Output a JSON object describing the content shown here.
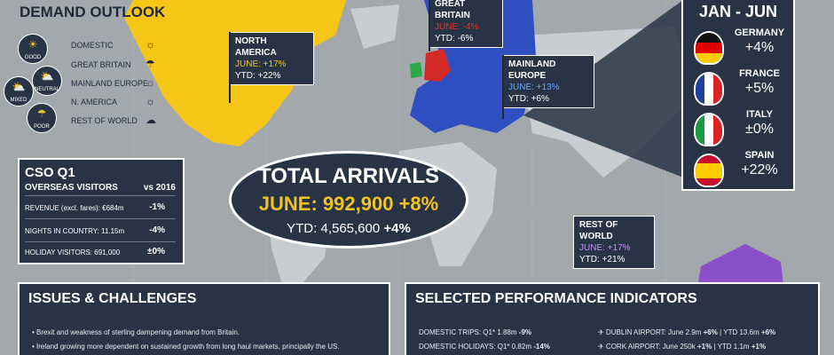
{
  "demand": {
    "title": "DEMAND OUTLOOK",
    "levels": [
      {
        "label": "GOOD",
        "icon": "sun-icon"
      },
      {
        "label": "NEUTRAL",
        "icon": "sun-cloud-icon"
      },
      {
        "label": "MIXED",
        "icon": "cloud-sun-icon"
      },
      {
        "label": "POOR",
        "icon": "rain-icon"
      }
    ],
    "markets": [
      {
        "name": "DOMESTIC",
        "outlook": "sun-icon"
      },
      {
        "name": "GREAT BRITAIN",
        "outlook": "rain-icon"
      },
      {
        "name": "MAINLAND EUROPE",
        "outlook": "sun-icon"
      },
      {
        "name": "N. AMERICA",
        "outlook": "sun-icon"
      },
      {
        "name": "REST OF WORLD",
        "outlook": "cloud-icon"
      }
    ]
  },
  "regions": {
    "north_america": {
      "name": "NORTH AMERICA",
      "june": "JUNE: +17%",
      "ytd_label": "YTD:",
      "ytd": "+22%"
    },
    "great_britain": {
      "name": "GREAT BRITAIN",
      "june": "JUNE: -4%",
      "ytd_label": "YTD:",
      "ytd": "-6%"
    },
    "mainland_europe": {
      "name": "MAINLAND EUROPE",
      "june": "JUNE: +13%",
      "ytd_label": "YTD:",
      "ytd": "+6%"
    },
    "rest_of_world": {
      "name": "REST OF WORLD",
      "june": "JUNE: +17%",
      "ytd_label": "YTD:",
      "ytd": "+21%"
    }
  },
  "cso": {
    "title": "CSO Q1",
    "sub": "OVERSEAS VISITORS",
    "vs": "vs 2016",
    "rows": [
      {
        "label": "REVENUE (excl. fares): €684m",
        "value": "-1%"
      },
      {
        "label": "NIGHTS IN COUNTRY: 11.15m",
        "value": "-4%"
      },
      {
        "label": "HOLIDAY VISITORS: 691,000",
        "value": "±0%"
      }
    ]
  },
  "total": {
    "title": "TOTAL ARRIVALS",
    "june": "JUNE: 992,900 +8%",
    "ytd_label": "YTD: 4,565,600",
    "ytd_change": "+4%"
  },
  "janjun": {
    "title": "JAN - JUN",
    "countries": [
      {
        "name": "GERMANY",
        "value": "+4%"
      },
      {
        "name": "FRANCE",
        "value": "+5%"
      },
      {
        "name": "ITALY",
        "value": "±0%"
      },
      {
        "name": "SPAIN",
        "value": "+22%"
      }
    ]
  },
  "issues": {
    "title": "ISSUES & CHALLENGES",
    "items": [
      "Brexit and weakness of sterling dampening demand from Britain.",
      "Ireland growing more dependent on sustained growth from long haul markets, principally the US."
    ]
  },
  "spi": {
    "title": "SELECTED PERFORMANCE INDICATORS",
    "left": [
      {
        "label": "DOMESTIC TRIPS: Q1* 1.88m",
        "value": "-9%"
      },
      {
        "label": "DOMESTIC HOLIDAYS: Q1* 0.82m",
        "value": "-14%"
      }
    ],
    "right": [
      {
        "label": "✈ DUBLIN AIRPORT:  June 2.9m",
        "value": "+6%",
        "ytd": "| YTD 13.6m",
        "ytd_value": "+6%"
      },
      {
        "label": "✈ CORK AIRPORT:  June 250k",
        "value": "+1%",
        "ytd": "| YTD 1.1m",
        "ytd_value": "+1%"
      }
    ]
  },
  "colors": {
    "north_america": "#f5c518",
    "great_britain": "#d42a27",
    "europe": "#2f4fc1",
    "rest_of_world": "#8a4fc9",
    "ireland": "#2aa84a",
    "panel": "#283445"
  }
}
